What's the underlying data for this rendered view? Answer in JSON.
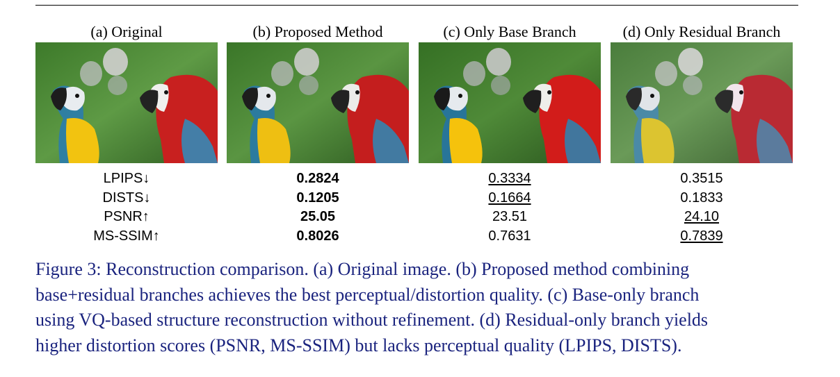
{
  "panels": [
    {
      "title": "(a) Original"
    },
    {
      "title": "(b) Proposed Method"
    },
    {
      "title": "(c) Only Base Branch"
    },
    {
      "title": "(d) Only Residual Branch"
    }
  ],
  "metric_labels": [
    "LPIPS↓",
    "DISTS↓",
    "PSNR↑",
    "MS-SSIM↑"
  ],
  "metric_columns": [
    {
      "values": [
        "0.2824",
        "0.1205",
        "25.05",
        "0.8026"
      ],
      "styles": [
        "bold",
        "bold",
        "bold",
        "bold"
      ]
    },
    {
      "values": [
        "0.3334",
        "0.1664",
        "23.51",
        "0.7631"
      ],
      "styles": [
        "underline",
        "underline",
        "plain",
        "plain"
      ]
    },
    {
      "values": [
        "0.3515",
        "0.1833",
        "24.10",
        "0.7839"
      ],
      "styles": [
        "plain",
        "plain",
        "underline",
        "underline"
      ]
    }
  ],
  "caption_lines": [
    "Figure 3: Reconstruction comparison. (a) Original image. (b) Proposed method combining",
    "base+residual branches achieves the best perceptual/distortion quality. (c) Base-only branch",
    "using VQ-based structure reconstruction without refinement. (d) Residual-only branch yields",
    "higher distortion scores (PSNR, MS-SSIM) but lacks perceptual quality (LPIPS, DISTS)."
  ]
}
